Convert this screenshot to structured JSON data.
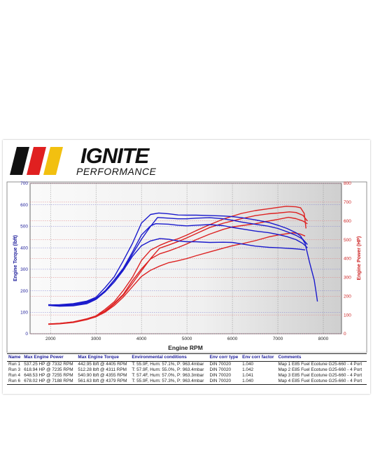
{
  "brand": {
    "name": "IGNITE",
    "tagline": "PERFORMANCE",
    "stripe_colors": [
      "#111111",
      "#e02020",
      "#f2c010"
    ]
  },
  "chart_data": {
    "type": "line",
    "xlabel": "Engine RPM",
    "ylabel_left": "Engine Torque (lbft)",
    "ylabel_right": "Engine Power (HP)",
    "xlim": [
      1550,
      8400
    ],
    "ylim_left": [
      0,
      700
    ],
    "ylim_right": [
      0,
      800
    ],
    "x_ticks": [
      2000,
      3000,
      4000,
      5000,
      6000,
      7000,
      8000
    ],
    "y_left_ticks": [
      0,
      100,
      200,
      300,
      400,
      500,
      600,
      700
    ],
    "y_right_ticks": [
      0,
      100,
      200,
      300,
      400,
      500,
      600,
      700,
      800
    ],
    "grid": true,
    "torque_color": "#1a1acc",
    "power_color": "#dd2222",
    "torque_series": [
      {
        "name": "Run 1",
        "points": [
          [
            1950,
            132
          ],
          [
            2200,
            128
          ],
          [
            2500,
            130
          ],
          [
            2800,
            140
          ],
          [
            3000,
            160
          ],
          [
            3200,
            195
          ],
          [
            3400,
            240
          ],
          [
            3600,
            295
          ],
          [
            3800,
            360
          ],
          [
            4000,
            410
          ],
          [
            4200,
            432
          ],
          [
            4405,
            443
          ],
          [
            4600,
            440
          ],
          [
            4800,
            432
          ],
          [
            5000,
            428
          ],
          [
            5200,
            428
          ],
          [
            5500,
            425
          ],
          [
            5800,
            426
          ],
          [
            6000,
            425
          ],
          [
            6200,
            418
          ],
          [
            6500,
            408
          ],
          [
            6800,
            402
          ],
          [
            7000,
            400
          ],
          [
            7200,
            398
          ],
          [
            7400,
            395
          ],
          [
            7500,
            393
          ],
          [
            7600,
            390
          ]
        ]
      },
      {
        "name": "Run 3",
        "points": [
          [
            1950,
            135
          ],
          [
            2200,
            133
          ],
          [
            2500,
            136
          ],
          [
            2800,
            148
          ],
          [
            3000,
            165
          ],
          [
            3200,
            200
          ],
          [
            3400,
            250
          ],
          [
            3600,
            305
          ],
          [
            3800,
            380
          ],
          [
            4000,
            460
          ],
          [
            4200,
            502
          ],
          [
            4311,
            512
          ],
          [
            4600,
            510
          ],
          [
            4800,
            505
          ],
          [
            5000,
            502
          ],
          [
            5200,
            505
          ],
          [
            5500,
            508
          ],
          [
            5800,
            503
          ],
          [
            6000,
            495
          ],
          [
            6200,
            488
          ],
          [
            6500,
            478
          ],
          [
            6800,
            470
          ],
          [
            7000,
            462
          ],
          [
            7200,
            452
          ],
          [
            7400,
            438
          ],
          [
            7550,
            420
          ],
          [
            7650,
            400
          ]
        ]
      },
      {
        "name": "Run 4",
        "points": [
          [
            1950,
            133
          ],
          [
            2200,
            130
          ],
          [
            2500,
            133
          ],
          [
            2800,
            145
          ],
          [
            3000,
            162
          ],
          [
            3200,
            198
          ],
          [
            3400,
            248
          ],
          [
            3600,
            300
          ],
          [
            3800,
            370
          ],
          [
            4000,
            440
          ],
          [
            4200,
            500
          ],
          [
            4355,
            541
          ],
          [
            4600,
            538
          ],
          [
            4800,
            535
          ],
          [
            5000,
            535
          ],
          [
            5200,
            538
          ],
          [
            5500,
            540
          ],
          [
            5800,
            535
          ],
          [
            6000,
            528
          ],
          [
            6200,
            520
          ],
          [
            6500,
            510
          ],
          [
            6800,
            500
          ],
          [
            7000,
            490
          ],
          [
            7200,
            475
          ],
          [
            7400,
            458
          ],
          [
            7550,
            440
          ],
          [
            7650,
            415
          ]
        ]
      },
      {
        "name": "Run 6",
        "points": [
          [
            1950,
            134
          ],
          [
            2200,
            135
          ],
          [
            2500,
            140
          ],
          [
            2800,
            152
          ],
          [
            3000,
            170
          ],
          [
            3200,
            215
          ],
          [
            3400,
            265
          ],
          [
            3600,
            340
          ],
          [
            3800,
            420
          ],
          [
            4000,
            515
          ],
          [
            4200,
            555
          ],
          [
            4379,
            562
          ],
          [
            4600,
            558
          ],
          [
            4800,
            553
          ],
          [
            5000,
            552
          ],
          [
            5200,
            552
          ],
          [
            5500,
            550
          ],
          [
            5800,
            548
          ],
          [
            6000,
            545
          ],
          [
            6200,
            540
          ],
          [
            6500,
            530
          ],
          [
            6800,
            518
          ],
          [
            7000,
            505
          ],
          [
            7200,
            490
          ],
          [
            7400,
            470
          ],
          [
            7500,
            455
          ],
          [
            7600,
            420
          ],
          [
            7700,
            330
          ],
          [
            7800,
            250
          ],
          [
            7850,
            180
          ],
          [
            7870,
            150
          ]
        ]
      }
    ],
    "power_series": [
      {
        "name": "Run 1",
        "points": [
          [
            1950,
            50
          ],
          [
            2200,
            53
          ],
          [
            2500,
            60
          ],
          [
            2800,
            75
          ],
          [
            3000,
            90
          ],
          [
            3200,
            115
          ],
          [
            3400,
            150
          ],
          [
            3600,
            195
          ],
          [
            3800,
            250
          ],
          [
            4000,
            305
          ],
          [
            4200,
            338
          ],
          [
            4400,
            360
          ],
          [
            4600,
            378
          ],
          [
            4800,
            388
          ],
          [
            5000,
            400
          ],
          [
            5200,
            415
          ],
          [
            5500,
            435
          ],
          [
            5800,
            455
          ],
          [
            6000,
            468
          ],
          [
            6200,
            478
          ],
          [
            6500,
            495
          ],
          [
            6800,
            515
          ],
          [
            7000,
            525
          ],
          [
            7200,
            532
          ],
          [
            7332,
            537
          ],
          [
            7500,
            530
          ],
          [
            7600,
            520
          ]
        ]
      },
      {
        "name": "Run 3",
        "points": [
          [
            1950,
            52
          ],
          [
            2200,
            55
          ],
          [
            2500,
            63
          ],
          [
            2800,
            78
          ],
          [
            3000,
            94
          ],
          [
            3200,
            122
          ],
          [
            3400,
            162
          ],
          [
            3600,
            210
          ],
          [
            3800,
            282
          ],
          [
            4000,
            345
          ],
          [
            4200,
            398
          ],
          [
            4400,
            425
          ],
          [
            4600,
            440
          ],
          [
            4800,
            458
          ],
          [
            5000,
            478
          ],
          [
            5200,
            500
          ],
          [
            5500,
            530
          ],
          [
            5800,
            555
          ],
          [
            6000,
            568
          ],
          [
            6200,
            575
          ],
          [
            6500,
            585
          ],
          [
            6800,
            600
          ],
          [
            7000,
            608
          ],
          [
            7235,
            619
          ],
          [
            7400,
            612
          ],
          [
            7550,
            600
          ],
          [
            7650,
            585
          ]
        ]
      },
      {
        "name": "Run 4",
        "points": [
          [
            1950,
            51
          ],
          [
            2200,
            54
          ],
          [
            2500,
            61
          ],
          [
            2800,
            76
          ],
          [
            3000,
            92
          ],
          [
            3200,
            118
          ],
          [
            3400,
            158
          ],
          [
            3600,
            205
          ],
          [
            3800,
            268
          ],
          [
            4000,
            335
          ],
          [
            4200,
            400
          ],
          [
            4400,
            455
          ],
          [
            4600,
            472
          ],
          [
            4800,
            490
          ],
          [
            5000,
            510
          ],
          [
            5200,
            532
          ],
          [
            5500,
            565
          ],
          [
            5800,
            588
          ],
          [
            6000,
            600
          ],
          [
            6200,
            612
          ],
          [
            6500,
            628
          ],
          [
            6800,
            638
          ],
          [
            7000,
            642
          ],
          [
            7255,
            648
          ],
          [
            7400,
            645
          ],
          [
            7550,
            630
          ],
          [
            7650,
            600
          ]
        ]
      },
      {
        "name": "Run 6",
        "points": [
          [
            1950,
            51
          ],
          [
            2200,
            55
          ],
          [
            2500,
            63
          ],
          [
            2800,
            80
          ],
          [
            3000,
            95
          ],
          [
            3200,
            130
          ],
          [
            3400,
            170
          ],
          [
            3600,
            230
          ],
          [
            3800,
            300
          ],
          [
            4000,
            390
          ],
          [
            4200,
            445
          ],
          [
            4400,
            470
          ],
          [
            4600,
            490
          ],
          [
            4800,
            505
          ],
          [
            5000,
            525
          ],
          [
            5200,
            548
          ],
          [
            5500,
            580
          ],
          [
            5800,
            610
          ],
          [
            6000,
            625
          ],
          [
            6200,
            640
          ],
          [
            6500,
            655
          ],
          [
            6800,
            665
          ],
          [
            7000,
            672
          ],
          [
            7188,
            678
          ],
          [
            7400,
            675
          ],
          [
            7500,
            670
          ],
          [
            7580,
            640
          ],
          [
            7620,
            560
          ]
        ]
      }
    ]
  },
  "table": {
    "headers": [
      "Name",
      "Max Engine Power",
      "Max Engine Torque",
      "Environmental conditions",
      "Env corr type",
      "Env corr factor",
      "Comments"
    ],
    "rows": [
      [
        "Run 1",
        "537.25 HP @ 7332 RPM",
        "442.95 lbft @ 4405 RPM",
        "T: 55.9F, Hum: 57.1%, P: 963.4mbar",
        "DIN 70020",
        "1.040",
        "Map 1 E85 Fuel Ecotune G25-660 - 4 Port"
      ],
      [
        "Run 3",
        "618.94 HP @ 7235 RPM",
        "512.28 lbft @ 4311 RPM",
        "T: 57.9F, Hum: 55.0%, P: 963.4mbar",
        "DIN 70020",
        "1.042",
        "Map 2 E85 Fuel Ecotune G25-660 - 4 Port"
      ],
      [
        "Run 4",
        "648.53 HP @ 7255 RPM",
        "540.90 lbft @ 4355 RPM",
        "T: 57.4F, Hum: 57.0%, P: 963.3mbar",
        "DIN 70020",
        "1.041",
        "Map 3 E85 Fuel Ecotune G25-660 - 4 Port"
      ],
      [
        "Run 6",
        "678.02 HP @ 7188 RPM",
        "561.63 lbft @ 4379 RPM",
        "T: 55.9F, Hum: 57.3%, P: 963.4mbar",
        "DIN 70020",
        "1.040",
        "Map 4 E85 Fuel Ecotune G25-660 - 4 Port"
      ]
    ]
  }
}
